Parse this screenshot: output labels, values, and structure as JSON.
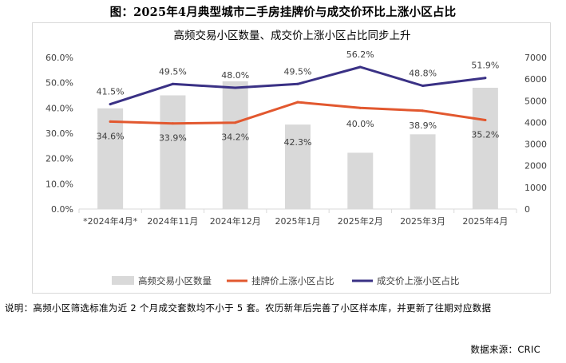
{
  "figure_title": "图：2025年4月典型城市二手房挂牌价与成交价环比上涨小区占比",
  "note": "说明：高频小区筛选标准为近 2 个月成交套数均不小于 5 套。农历新年后完善了小区样本库，并更新了往期对应数据",
  "source": "数据来源：CRIC",
  "chart_data": {
    "type": "bar+line",
    "title": "高频交易小区数量、成交价上涨小区占比同步上升",
    "categories": [
      "*2024年4月*",
      "2024年11月",
      "2024年12月",
      "2025年1月",
      "2025年2月",
      "2025年3月",
      "2025年4月"
    ],
    "y_left": {
      "min": 0,
      "max": 60,
      "step": 10,
      "ticks": [
        "0.0%",
        "10.0%",
        "20.0%",
        "30.0%",
        "40.0%",
        "50.0%",
        "60.0%"
      ]
    },
    "y_right": {
      "min": 0,
      "max": 7000,
      "step": 1000,
      "ticks": [
        "0",
        "1000",
        "2000",
        "3000",
        "4000",
        "5000",
        "6000",
        "7000"
      ]
    },
    "bars": {
      "name": "高频交易小区数量",
      "axis": "right",
      "color": "#d9d9d9",
      "values": [
        4650,
        5250,
        5900,
        3900,
        2600,
        3450,
        5600
      ]
    },
    "series": [
      {
        "name": "挂牌价上涨小区占比",
        "axis": "left",
        "color": "#e2582f",
        "values": [
          34.6,
          33.9,
          34.2,
          42.3,
          40.0,
          38.9,
          35.2
        ],
        "labels": [
          "34.6%",
          "33.9%",
          "34.2%",
          "42.3%",
          "40.0%",
          "38.9%",
          "35.2%"
        ]
      },
      {
        "name": "成交价上涨小区占比",
        "axis": "left",
        "color": "#3a3185",
        "values": [
          41.5,
          49.5,
          48.0,
          49.5,
          56.2,
          48.8,
          51.9
        ],
        "labels": [
          "41.5%",
          "49.5%",
          "48.0%",
          "49.5%",
          "56.2%",
          "48.8%",
          "51.9%"
        ]
      }
    ],
    "legend_position": "bottom",
    "grid": false
  }
}
